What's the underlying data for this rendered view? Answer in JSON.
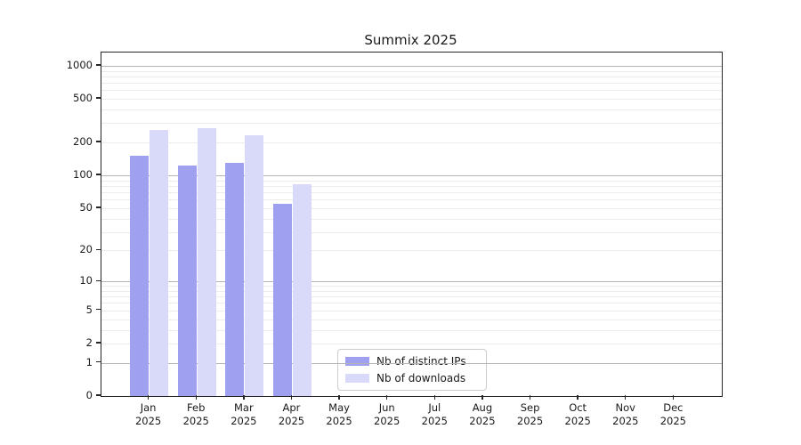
{
  "chart_data": {
    "type": "bar",
    "title": "Summix 2025",
    "categories": [
      "Jan",
      "Feb",
      "Mar",
      "Apr",
      "May",
      "Jun",
      "Jul",
      "Aug",
      "Sep",
      "Oct",
      "Nov",
      "Dec"
    ],
    "year": "2025",
    "series": [
      {
        "name": "Nb of distinct IPs",
        "color": "#a0a0f0",
        "values": [
          151,
          123,
          130,
          55,
          0,
          0,
          0,
          0,
          0,
          0,
          0,
          0
        ]
      },
      {
        "name": "Nb of downloads",
        "color": "#d9d9fa",
        "values": [
          261,
          271,
          233,
          83,
          0,
          0,
          0,
          0,
          0,
          0,
          0,
          0
        ]
      }
    ],
    "yscale": "log10(1+x)",
    "ylim": [
      0,
      1000
    ],
    "yticks": [
      0,
      1,
      2,
      5,
      10,
      20,
      50,
      100,
      200,
      500,
      1000
    ],
    "major_gridlines": [
      1,
      10,
      100,
      1000
    ],
    "minor_gridlines": [
      2,
      3,
      4,
      5,
      6,
      7,
      8,
      9,
      20,
      30,
      40,
      50,
      60,
      70,
      80,
      90,
      200,
      300,
      400,
      500,
      600,
      700,
      800,
      900
    ],
    "grid": "on",
    "legend_position": "lower center (inside axes)",
    "colors": {
      "grid_minor": "#ececec",
      "grid_major": "#b5b5b5",
      "spine": "#262626",
      "text": "#1a1a1a",
      "background": "#ffffff"
    }
  }
}
